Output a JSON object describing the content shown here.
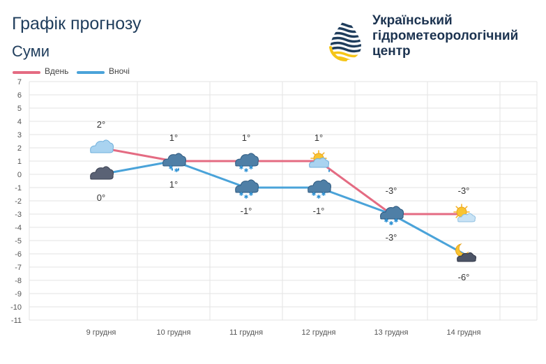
{
  "header": {
    "title": "Графік прогнозу",
    "city": "Суми"
  },
  "organization": {
    "line1": "Український",
    "line2": "гідрометеорологічний",
    "line3": "центр"
  },
  "colors": {
    "day": "#e46b82",
    "night": "#4aa3d9",
    "grid": "#e3e3e3",
    "title": "#1f3d5c"
  },
  "chart_data": {
    "type": "line",
    "title": "Графік прогнозу",
    "categories": [
      "9 грудня",
      "10 грудня",
      "11 грудня",
      "12 грудня",
      "13 грудня",
      "14 грудня"
    ],
    "series": [
      {
        "name": "Вдень",
        "values": [
          2,
          1,
          1,
          1,
          -3,
          -3
        ],
        "labels": [
          "2°",
          "1°",
          "1°",
          "1°",
          "-3°",
          "-3°"
        ],
        "icons": [
          "cloudy-day-icon",
          "sleet-icon",
          "snow-cloud-icon",
          "sun-cloud-rain-icon",
          "snow-cloud-icon",
          "sun-cloud-icon"
        ]
      },
      {
        "name": "Вночі",
        "values": [
          0,
          1,
          -1,
          -1,
          -3,
          -6
        ],
        "labels": [
          "0°",
          "1°",
          "-1°",
          "-1°",
          "-3°",
          "-6°"
        ],
        "icons": [
          "overcast-night-icon",
          "sleet-icon",
          "snow-cloud-icon",
          "snow-cloud-icon",
          "snow-cloud-icon",
          "moon-cloud-icon"
        ]
      }
    ],
    "ylim": [
      -11,
      7
    ],
    "yticks": [
      7,
      6,
      5,
      4,
      3,
      2,
      1,
      0,
      -1,
      -2,
      -3,
      -4,
      -5,
      -6,
      -7,
      -8,
      -9,
      -10,
      -11
    ],
    "xlabel": "",
    "ylabel": "",
    "legend": "top-left",
    "grid": true
  }
}
